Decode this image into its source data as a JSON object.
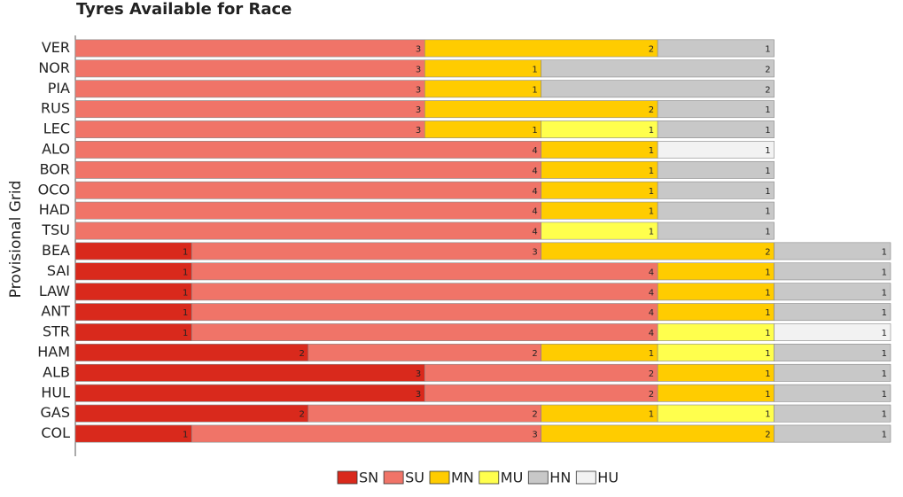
{
  "chart_data": {
    "type": "stacked-bar",
    "orientation": "horizontal",
    "title": "Tyres Available for Race",
    "y_label": "Provisional Grid",
    "categories": [
      "VER",
      "NOR",
      "PIA",
      "RUS",
      "LEC",
      "ALO",
      "BOR",
      "OCO",
      "HAD",
      "TSU",
      "BEA",
      "SAI",
      "LAW",
      "ANT",
      "STR",
      "HAM",
      "ALB",
      "HUL",
      "GAS",
      "COL"
    ],
    "xlim": [
      0,
      7
    ],
    "series": [
      {
        "name": "SN",
        "color": "#d9291c",
        "values": [
          null,
          null,
          null,
          null,
          null,
          null,
          null,
          null,
          null,
          null,
          1,
          1,
          1,
          1,
          1,
          2,
          3,
          3,
          2,
          1
        ]
      },
      {
        "name": "SU",
        "color": "#f07468",
        "values": [
          3,
          3,
          3,
          3,
          3,
          4,
          4,
          4,
          4,
          4,
          3,
          4,
          4,
          4,
          4,
          2,
          2,
          2,
          2,
          3
        ]
      },
      {
        "name": "MN",
        "color": "#ffcc00",
        "values": [
          2,
          1,
          1,
          2,
          1,
          1,
          1,
          1,
          1,
          null,
          2,
          1,
          1,
          1,
          null,
          1,
          1,
          1,
          1,
          2
        ]
      },
      {
        "name": "MU",
        "color": "#ffff4d",
        "values": [
          null,
          null,
          null,
          null,
          1,
          null,
          null,
          null,
          null,
          1,
          null,
          null,
          null,
          null,
          1,
          1,
          null,
          null,
          1,
          null
        ]
      },
      {
        "name": "HN",
        "color": "#c8c8c8",
        "values": [
          1,
          2,
          2,
          1,
          1,
          null,
          1,
          1,
          1,
          1,
          1,
          1,
          1,
          1,
          null,
          1,
          1,
          1,
          1,
          1
        ]
      },
      {
        "name": "HU",
        "color": "#f2f2f2",
        "values": [
          null,
          null,
          null,
          null,
          null,
          1,
          null,
          null,
          null,
          null,
          null,
          null,
          null,
          null,
          1,
          null,
          null,
          null,
          null,
          null
        ]
      }
    ],
    "legend": "bottom"
  }
}
